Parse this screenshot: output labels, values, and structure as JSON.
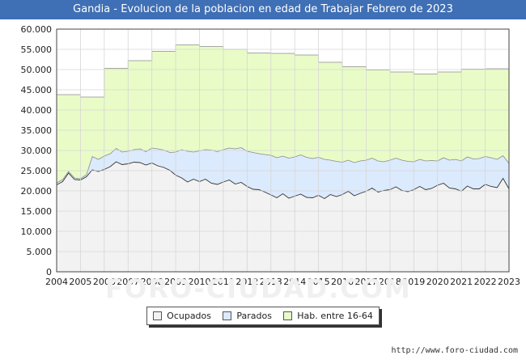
{
  "header": {
    "title": "Gandia - Evolucion de la poblacion en edad de Trabajar Febrero de 2023"
  },
  "footer": {
    "url": "http://www.foro-ciudad.com",
    "watermark": "FORO-CIUDAD.COM"
  },
  "legend": [
    {
      "label": "Ocupados",
      "color": "#f2f2f2"
    },
    {
      "label": "Parados",
      "color": "#dbeafd"
    },
    {
      "label": "Hab. entre 16-64",
      "color": "#e9fcc7"
    }
  ],
  "chart_data": {
    "type": "area",
    "title": "Gandia - Evolucion de la poblacion en edad de Trabajar Febrero de 2023",
    "xlim": [
      2004,
      2023
    ],
    "ylim": [
      0,
      60000
    ],
    "y_ticks": [
      "0",
      "5.000",
      "10.000",
      "15.000",
      "20.000",
      "25.000",
      "30.000",
      "35.000",
      "40.000",
      "45.000",
      "50.000",
      "55.000",
      "60.000"
    ],
    "x_ticks": [
      "2004",
      "2005",
      "2006",
      "2007",
      "2008",
      "2009",
      "2010",
      "2011",
      "2012",
      "2013",
      "2014",
      "2015",
      "2016",
      "2017",
      "2018",
      "2019",
      "2020",
      "2021",
      "2022",
      "2023"
    ],
    "grid": true,
    "legend_position": "bottom",
    "series": [
      {
        "name": "Hab. entre 16-64",
        "color": "#e9fcc7",
        "x": [
          2004,
          2005,
          2006,
          2007,
          2008,
          2009,
          2010,
          2011,
          2012,
          2013,
          2014,
          2015,
          2016,
          2017,
          2018,
          2019,
          2020,
          2021,
          2022,
          2023
        ],
        "values": [
          43800,
          43200,
          50300,
          52200,
          54500,
          56100,
          55700,
          55000,
          54100,
          54000,
          53600,
          51800,
          50700,
          49900,
          49400,
          48900,
          49400,
          50100,
          50200,
          50200
        ]
      },
      {
        "name": "Parados",
        "color": "#dbeafd",
        "x": [
          2004.0,
          2004.25,
          2004.5,
          2004.75,
          2005.0,
          2005.25,
          2005.5,
          2005.75,
          2006.0,
          2006.25,
          2006.5,
          2006.75,
          2007.0,
          2007.25,
          2007.5,
          2007.75,
          2008.0,
          2008.25,
          2008.5,
          2008.75,
          2009.0,
          2009.25,
          2009.5,
          2009.75,
          2010.0,
          2010.25,
          2010.5,
          2010.75,
          2011.0,
          2011.25,
          2011.5,
          2011.75,
          2012.0,
          2012.25,
          2012.5,
          2012.75,
          2013.0,
          2013.25,
          2013.5,
          2013.75,
          2014.0,
          2014.25,
          2014.5,
          2014.75,
          2015.0,
          2015.25,
          2015.5,
          2015.75,
          2016.0,
          2016.25,
          2016.5,
          2016.75,
          2017.0,
          2017.25,
          2017.5,
          2017.75,
          2018.0,
          2018.25,
          2018.5,
          2018.75,
          2019.0,
          2019.25,
          2019.5,
          2019.75,
          2020.0,
          2020.25,
          2020.5,
          2020.75,
          2021.0,
          2021.25,
          2021.5,
          2021.75,
          2022.0,
          2022.25,
          2022.5,
          2022.75,
          2023.0
        ],
        "values": [
          22000,
          22800,
          24800,
          23200,
          23000,
          24000,
          28500,
          27800,
          28600,
          29200,
          30500,
          29600,
          29800,
          30200,
          30400,
          29700,
          30600,
          30400,
          30100,
          29500,
          29600,
          30200,
          29800,
          29600,
          29900,
          30200,
          30100,
          29700,
          30200,
          30600,
          30400,
          30700,
          29800,
          29500,
          29200,
          29000,
          28800,
          28200,
          28600,
          28100,
          28400,
          28900,
          28300,
          28000,
          28300,
          27800,
          27600,
          27300,
          27100,
          27600,
          27000,
          27400,
          27600,
          28100,
          27400,
          27200,
          27600,
          28100,
          27600,
          27300,
          27200,
          27800,
          27400,
          27500,
          27400,
          28200,
          27600,
          27800,
          27400,
          28400,
          27900,
          28000,
          28500,
          28200,
          27800,
          28700,
          26800
        ]
      },
      {
        "name": "Ocupados",
        "color": "#f2f2f2",
        "x": [
          2004.0,
          2004.25,
          2004.5,
          2004.75,
          2005.0,
          2005.25,
          2005.5,
          2005.75,
          2006.0,
          2006.25,
          2006.5,
          2006.75,
          2007.0,
          2007.25,
          2007.5,
          2007.75,
          2008.0,
          2008.25,
          2008.5,
          2008.75,
          2009.0,
          2009.25,
          2009.5,
          2009.75,
          2010.0,
          2010.25,
          2010.5,
          2010.75,
          2011.0,
          2011.25,
          2011.5,
          2011.75,
          2012.0,
          2012.25,
          2012.5,
          2012.75,
          2013.0,
          2013.25,
          2013.5,
          2013.75,
          2014.0,
          2014.25,
          2014.5,
          2014.75,
          2015.0,
          2015.25,
          2015.5,
          2015.75,
          2016.0,
          2016.25,
          2016.5,
          2016.75,
          2017.0,
          2017.25,
          2017.5,
          2017.75,
          2018.0,
          2018.25,
          2018.5,
          2018.75,
          2019.0,
          2019.25,
          2019.5,
          2019.75,
          2020.0,
          2020.25,
          2020.5,
          2020.75,
          2021.0,
          2021.25,
          2021.5,
          2021.75,
          2022.0,
          2022.25,
          2022.5,
          2022.75,
          2023.0
        ],
        "values": [
          21500,
          22300,
          24400,
          22800,
          22700,
          23500,
          25200,
          24800,
          25300,
          26000,
          27200,
          26500,
          26700,
          27100,
          27000,
          26400,
          26900,
          26200,
          25800,
          25100,
          23900,
          23200,
          22200,
          22900,
          22300,
          22900,
          21900,
          21600,
          22200,
          22700,
          21700,
          22100,
          21100,
          20400,
          20300,
          19700,
          19000,
          18300,
          19300,
          18200,
          18700,
          19200,
          18400,
          18300,
          18900,
          18100,
          19100,
          18600,
          19100,
          19900,
          18800,
          19400,
          19900,
          20700,
          19700,
          20100,
          20300,
          21000,
          20100,
          19800,
          20300,
          21100,
          20300,
          20600,
          21400,
          21900,
          20700,
          20500,
          19900,
          21200,
          20500,
          20500,
          21600,
          21100,
          20800,
          23100,
          20500
        ]
      }
    ]
  }
}
